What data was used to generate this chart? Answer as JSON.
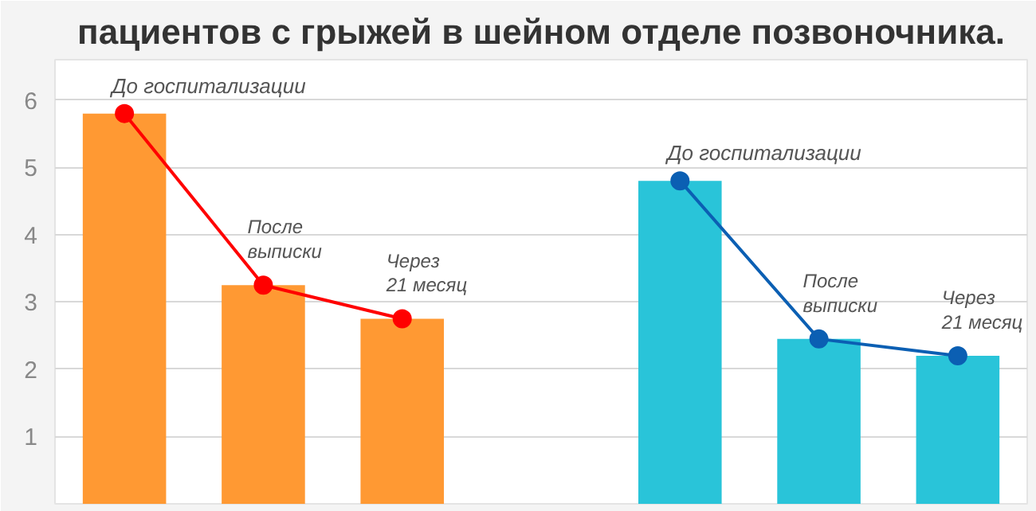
{
  "chart_data": {
    "type": "bar",
    "title": "пациентов с грыжей в шейном отделе позвоночника.",
    "categories": [
      null,
      null,
      null,
      null,
      null,
      null,
      null
    ],
    "series": [
      {
        "color": "#ff9933",
        "values": [
          5.8,
          3.25,
          2.75,
          null,
          null,
          null,
          null
        ]
      },
      {
        "color": "#29c4d9",
        "values": [
          null,
          null,
          null,
          null,
          4.8,
          2.45,
          2.2
        ]
      },
      {
        "type": "line",
        "color": "#ff0000",
        "values": [
          5.8,
          3.25,
          2.75,
          null,
          null,
          null,
          null
        ],
        "value_labels": [
          "До госпитализации",
          "После выписки",
          "Через 21 месяц",
          null,
          null,
          null,
          null
        ]
      },
      {
        "type": "line",
        "color": "#0b5fb3",
        "values": [
          null,
          null,
          null,
          null,
          4.8,
          2.45,
          2.2
        ],
        "value_labels": [
          null,
          null,
          null,
          null,
          "До госпитализации",
          "После выписки",
          "Через 21 месяц"
        ]
      }
    ],
    "ylim": [
      0,
      6.6
    ],
    "yticks": [
      1,
      2,
      3,
      4,
      5,
      6
    ],
    "grid": "y",
    "marker": "circle"
  }
}
